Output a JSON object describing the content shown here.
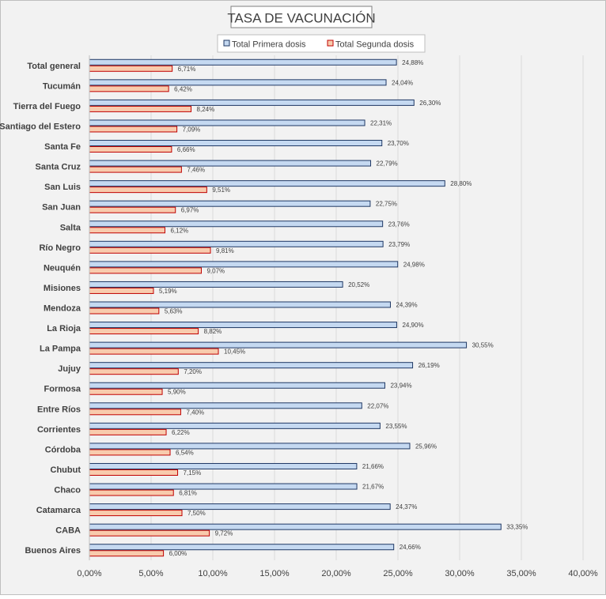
{
  "chart_data": {
    "type": "bar",
    "orientation": "horizontal",
    "title": "TASA DE VACUNACIÓN",
    "legend_position": "top",
    "categories": [
      "Total general",
      "Tucumán",
      "Tierra del Fuego",
      "Santiago del Estero",
      "Santa Fe",
      "Santa Cruz",
      "San Luis",
      "San Juan",
      "Salta",
      "Río Negro",
      "Neuquén",
      "Misiones",
      "Mendoza",
      "La Rioja",
      "La Pampa",
      "Jujuy",
      "Formosa",
      "Entre Ríos",
      "Corrientes",
      "Córdoba",
      "Chubut",
      "Chaco",
      "Catamarca",
      "CABA",
      "Buenos Aires"
    ],
    "series": [
      {
        "name": "Total Primera dosis",
        "color": "#c5d9f1",
        "stroke": "#1f3864",
        "values": [
          24.88,
          24.04,
          26.3,
          22.31,
          23.7,
          22.79,
          28.8,
          22.75,
          23.76,
          23.79,
          24.98,
          20.52,
          24.39,
          24.9,
          30.55,
          26.19,
          23.94,
          22.07,
          23.55,
          25.96,
          21.66,
          21.67,
          24.37,
          33.35,
          24.66
        ],
        "labels": [
          "24,88%",
          "24,04%",
          "26,30%",
          "22,31%",
          "23,70%",
          "22,79%",
          "28,80%",
          "22,75%",
          "23,76%",
          "23,79%",
          "24,98%",
          "20,52%",
          "24,39%",
          "24,90%",
          "30,55%",
          "26,19%",
          "23,94%",
          "22,07%",
          "23,55%",
          "25,96%",
          "21,66%",
          "21,67%",
          "24,37%",
          "33,35%",
          "24,66%"
        ]
      },
      {
        "name": "Total Segunda dosis",
        "color": "#f8cbad",
        "stroke": "#c00000",
        "values": [
          6.71,
          6.42,
          8.24,
          7.09,
          6.66,
          7.46,
          9.51,
          6.97,
          6.12,
          9.81,
          9.07,
          5.19,
          5.63,
          8.82,
          10.45,
          7.2,
          5.9,
          7.4,
          6.22,
          6.54,
          7.15,
          6.81,
          7.5,
          9.72,
          6.0
        ],
        "labels": [
          "6,71%",
          "6,42%",
          "8,24%",
          "7,09%",
          "6,66%",
          "7,46%",
          "9,51%",
          "6,97%",
          "6,12%",
          "9,81%",
          "9,07%",
          "5,19%",
          "5,63%",
          "8,82%",
          "10,45%",
          "7,20%",
          "5,90%",
          "7,40%",
          "6,22%",
          "6,54%",
          "7,15%",
          "6,81%",
          "7,50%",
          "9,72%",
          "6,00%"
        ]
      }
    ],
    "xlim": [
      0,
      40
    ],
    "xticks": [
      0,
      5,
      10,
      15,
      20,
      25,
      30,
      35,
      40
    ],
    "xtick_labels": [
      "0,00%",
      "5,00%",
      "10,00%",
      "15,00%",
      "20,00%",
      "25,00%",
      "30,00%",
      "35,00%",
      "40,00%"
    ],
    "grid": true,
    "colors": {
      "background": "#f2f2f2",
      "gridline": "#d9d9d9"
    }
  }
}
